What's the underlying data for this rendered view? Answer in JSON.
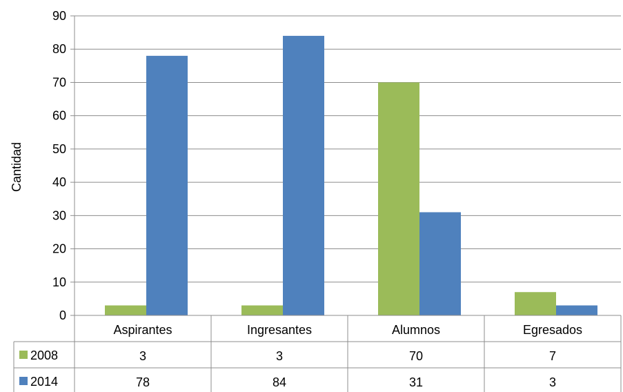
{
  "chart_data": {
    "type": "bar",
    "ylabel": "Cantidad",
    "xlabel": "",
    "ylim": [
      0,
      90
    ],
    "yticks": [
      0,
      10,
      20,
      30,
      40,
      50,
      60,
      70,
      80,
      90
    ],
    "grid": true,
    "legend": "data-table",
    "categories": [
      "Aspirantes",
      "Ingresantes",
      "Alumnos",
      "Egresados"
    ],
    "series": [
      {
        "name": "2008",
        "color": "#9BBB59",
        "values": [
          3,
          3,
          70,
          7
        ]
      },
      {
        "name": "2014",
        "color": "#4F81BD",
        "values": [
          78,
          84,
          31,
          3
        ]
      }
    ]
  }
}
